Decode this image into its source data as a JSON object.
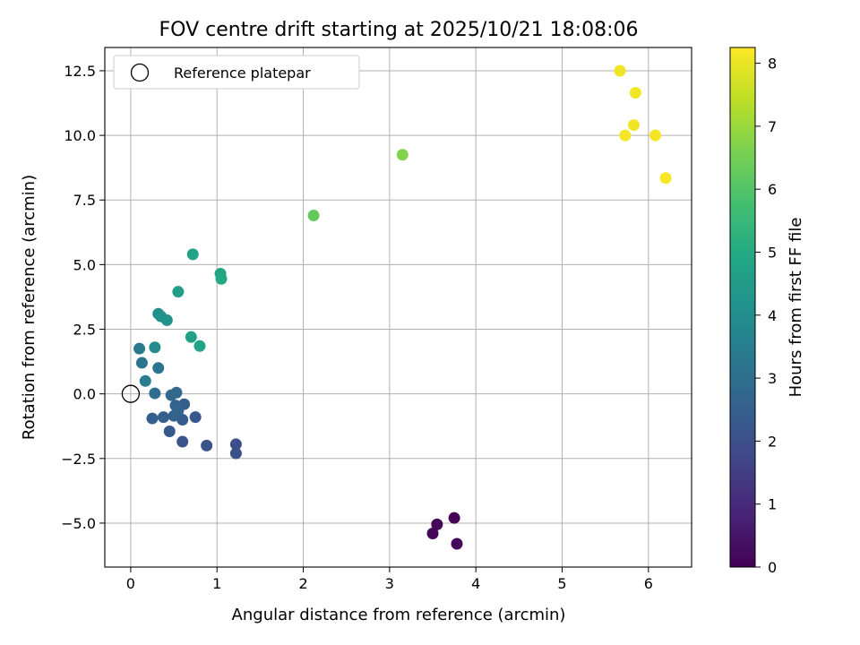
{
  "chart_data": {
    "type": "scatter",
    "title": "FOV centre drift starting at 2025/10/21 18:08:06",
    "xlabel": "Angular distance from reference (arcmin)",
    "ylabel": "Rotation from reference (arcmin)",
    "xlim": [
      -0.3,
      6.5
    ],
    "ylim": [
      -6.7,
      13.4
    ],
    "xticks": [
      0,
      1,
      2,
      3,
      4,
      5,
      6
    ],
    "xtick_labels": [
      "0",
      "1",
      "2",
      "3",
      "4",
      "5",
      "6"
    ],
    "yticks": [
      -5,
      -2.5,
      0,
      2.5,
      5,
      7.5,
      10,
      12.5
    ],
    "ytick_labels": [
      "−5.0",
      "−2.5",
      "0.0",
      "2.5",
      "5.0",
      "7.5",
      "10.0",
      "12.5"
    ],
    "grid": true,
    "colorbar": {
      "label": "Hours from first FF file",
      "range": [
        0,
        8.25
      ],
      "ticks": [
        0,
        1,
        2,
        3,
        4,
        5,
        6,
        7,
        8
      ],
      "tick_labels": [
        "0",
        "1",
        "2",
        "3",
        "4",
        "5",
        "6",
        "7",
        "8"
      ],
      "colormap": "viridis"
    },
    "legend": {
      "position": "top-left",
      "entries": [
        {
          "label": "Reference platepar",
          "marker": "open-circle"
        }
      ]
    },
    "reference_point": {
      "x": 0,
      "y": 0
    },
    "points": [
      {
        "x": 3.75,
        "y": -4.8,
        "h": 0.05
      },
      {
        "x": 3.55,
        "y": -5.05,
        "h": 0.1
      },
      {
        "x": 3.5,
        "y": -5.4,
        "h": 0.15
      },
      {
        "x": 3.78,
        "y": -5.8,
        "h": 0.2
      },
      {
        "x": 1.22,
        "y": -1.95,
        "h": 2.0
      },
      {
        "x": 1.22,
        "y": -2.3,
        "h": 2.05
      },
      {
        "x": 0.88,
        "y": -2.0,
        "h": 2.1
      },
      {
        "x": 0.6,
        "y": -1.85,
        "h": 2.15
      },
      {
        "x": 0.75,
        "y": -0.9,
        "h": 2.25
      },
      {
        "x": 0.45,
        "y": -1.45,
        "h": 2.3
      },
      {
        "x": 0.6,
        "y": -1.0,
        "h": 2.35
      },
      {
        "x": 0.62,
        "y": -0.4,
        "h": 2.45
      },
      {
        "x": 0.25,
        "y": -0.95,
        "h": 2.5
      },
      {
        "x": 0.38,
        "y": -0.9,
        "h": 2.5
      },
      {
        "x": 0.5,
        "y": -0.85,
        "h": 2.55
      },
      {
        "x": 0.52,
        "y": -0.45,
        "h": 2.6
      },
      {
        "x": 0.55,
        "y": -0.65,
        "h": 2.65
      },
      {
        "x": 0.47,
        "y": -0.05,
        "h": 2.7
      },
      {
        "x": 0.53,
        "y": 0.05,
        "h": 2.8
      },
      {
        "x": 0.28,
        "y": 0.02,
        "h": 2.9
      },
      {
        "x": 0.32,
        "y": 1.0,
        "h": 3.1
      },
      {
        "x": 0.13,
        "y": 1.2,
        "h": 3.2
      },
      {
        "x": 0.1,
        "y": 1.75,
        "h": 3.3
      },
      {
        "x": 0.17,
        "y": 0.5,
        "h": 3.5
      },
      {
        "x": 0.28,
        "y": 1.8,
        "h": 3.9
      },
      {
        "x": 0.32,
        "y": 3.1,
        "h": 4.1
      },
      {
        "x": 0.35,
        "y": 3.0,
        "h": 4.15
      },
      {
        "x": 0.42,
        "y": 2.85,
        "h": 4.2
      },
      {
        "x": 0.55,
        "y": 3.95,
        "h": 4.55
      },
      {
        "x": 0.7,
        "y": 2.2,
        "h": 4.65
      },
      {
        "x": 0.8,
        "y": 1.85,
        "h": 4.75
      },
      {
        "x": 0.72,
        "y": 5.4,
        "h": 4.75
      },
      {
        "x": 1.04,
        "y": 4.65,
        "h": 4.85
      },
      {
        "x": 1.05,
        "y": 4.45,
        "h": 4.95
      },
      {
        "x": 2.12,
        "y": 6.9,
        "h": 6.25
      },
      {
        "x": 3.15,
        "y": 9.25,
        "h": 6.7
      },
      {
        "x": 5.67,
        "y": 12.5,
        "h": 8.05
      },
      {
        "x": 5.85,
        "y": 11.65,
        "h": 8.1
      },
      {
        "x": 5.83,
        "y": 10.4,
        "h": 8.1
      },
      {
        "x": 5.73,
        "y": 10.0,
        "h": 8.15
      },
      {
        "x": 6.08,
        "y": 10.0,
        "h": 8.15
      },
      {
        "x": 6.2,
        "y": 8.35,
        "h": 8.2
      }
    ]
  }
}
